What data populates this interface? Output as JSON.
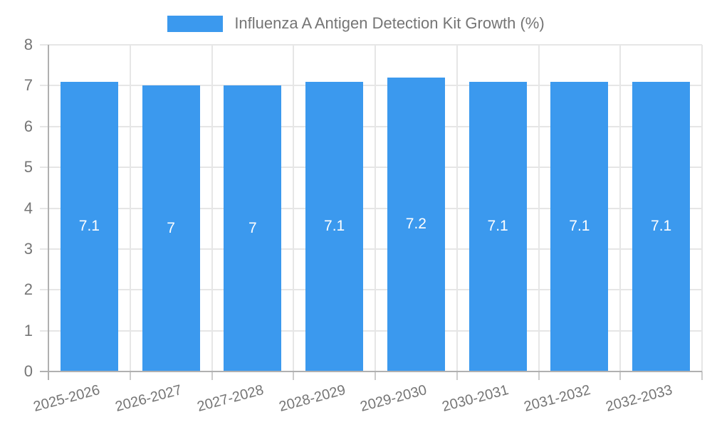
{
  "page": {
    "background": "#ffffff"
  },
  "legend": {
    "label": "Influenza A Antigen Detection Kit Growth (%)",
    "swatch_color": "#3B99EE"
  },
  "chart_data": {
    "type": "bar",
    "title": "Influenza A Antigen Detection Kit Growth (%)",
    "categories": [
      "2025-2026",
      "2026-2027",
      "2027-2028",
      "2028-2029",
      "2029-2030",
      "2030-2031",
      "2031-2032",
      "2032-2033"
    ],
    "values": [
      7.1,
      7,
      7,
      7.1,
      7.2,
      7.1,
      7.1,
      7.1
    ],
    "value_labels": [
      "7.1",
      "7",
      "7",
      "7.1",
      "7.2",
      "7.1",
      "7.1",
      "7.1"
    ],
    "xlabel": "",
    "ylabel": "",
    "ylim": [
      0,
      8
    ],
    "yticks": [
      0,
      1,
      2,
      3,
      4,
      5,
      6,
      7,
      8
    ],
    "ytick_labels": [
      "0",
      "1",
      "2",
      "3",
      "4",
      "5",
      "6",
      "7",
      "8"
    ],
    "grid": true,
    "legend_position": "top-center",
    "x_label_rotation_deg": -15,
    "colors": {
      "bar": "#3B99EE",
      "grid": "#e6e6e6",
      "axis_line": "#b0b0b0",
      "x_tick": "#cccccc",
      "y_tick": "#e6e6e6",
      "axis_text": "#757575",
      "value_text": "#ffffff"
    }
  }
}
